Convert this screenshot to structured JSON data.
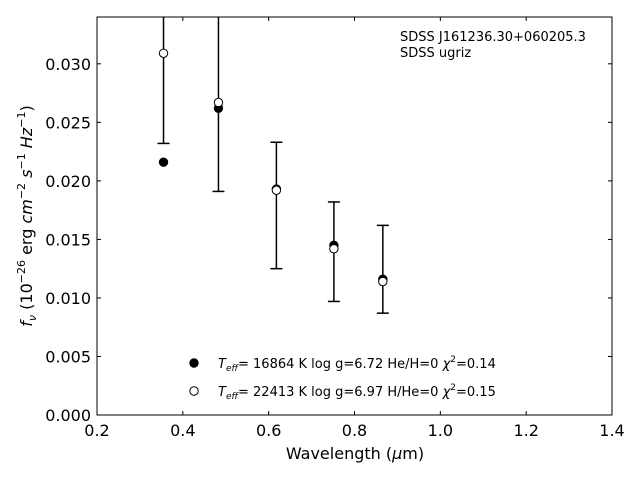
{
  "chart_data": {
    "type": "scatter",
    "xlabel": "Wavelength (μm)",
    "ylabel": "f_ν (10^-26 erg cm^-2 s^-1 Hz^-1)",
    "xlim": [
      0.2,
      1.4
    ],
    "ylim": [
      0.0,
      0.034
    ],
    "x_ticks": [
      "0.2",
      "0.4",
      "0.6",
      "0.8",
      "1.0",
      "1.2",
      "1.4"
    ],
    "y_ticks": [
      "0.000",
      "0.005",
      "0.010",
      "0.015",
      "0.020",
      "0.025",
      "0.030"
    ],
    "annotation": [
      "SDSS J161236.30+060205.3",
      "SDSS ugriz"
    ],
    "observed": {
      "x": [
        0.355,
        0.483,
        0.618,
        0.752,
        0.866
      ],
      "y": [
        0.0309,
        0.0267,
        0.0192,
        0.0142,
        0.0114
      ],
      "yerr_low": [
        0.0232,
        0.0191,
        0.0125,
        0.0097,
        0.0087
      ],
      "yerr_high": [
        0.034,
        0.034,
        0.0233,
        0.0182,
        0.0162
      ]
    },
    "series": [
      {
        "marker": "filled",
        "label": "T_eff= 16864 K  log g=6.72  He/H=0  χ²=0.14",
        "x": [
          0.355,
          0.483,
          0.618,
          0.752,
          0.866
        ],
        "y": [
          0.0216,
          0.0262,
          0.0193,
          0.0145,
          0.0116
        ]
      },
      {
        "marker": "open",
        "label": "T_eff= 22413 K  log g=6.97  H/He=0  χ²=0.15",
        "x": [
          0.355,
          0.483,
          0.618,
          0.752,
          0.866
        ],
        "y": [
          0.0309,
          0.0267,
          0.0192,
          0.0142,
          0.0114
        ]
      }
    ],
    "legend_position": "bottom-center",
    "grid": false
  }
}
